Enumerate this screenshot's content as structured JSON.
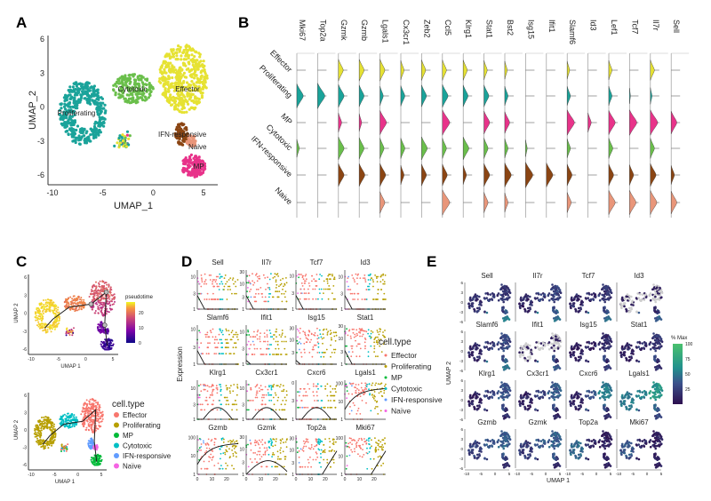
{
  "panels": {
    "a": "A",
    "b": "B",
    "c": "C",
    "d": "D",
    "e": "E"
  },
  "colors": {
    "clusters_a": {
      "Effector": "#e6e233",
      "Proliferating": "#1aa39a",
      "MP": "#e8338a",
      "Cytotoxic": "#6abf4b",
      "IFN-responsive": "#8b4513",
      "Naive": "#e9967a"
    },
    "clusters_cd": {
      "Effector": "#f8766d",
      "Proliferating": "#b79f00",
      "MP": "#00ba38",
      "Cytotoxic": "#00bfc4",
      "IFN-responsive": "#619cff",
      "Naive": "#f564e3"
    }
  },
  "chart_data": [
    {
      "id": "A",
      "type": "scatter",
      "xlabel": "UMAP_1",
      "ylabel": "UMAP_2",
      "xticks": [
        "-10",
        "-5",
        "0",
        "5"
      ],
      "yticks": [
        "-6",
        "-3",
        "0",
        "3",
        "6"
      ],
      "xlim": [
        -10,
        5
      ],
      "ylim": [
        -6,
        6
      ],
      "cluster_labels": [
        "Proliferating",
        "Cytotoxic",
        "Effector",
        "IFN-responsive",
        "Naive",
        "MP"
      ],
      "clusters": [
        {
          "name": "Proliferating",
          "center": [
            -7,
            -0.5
          ],
          "spread": [
            2.3,
            2.8
          ]
        },
        {
          "name": "Cytotoxic",
          "center": [
            -2,
            1.6
          ],
          "spread": [
            2.0,
            1.3
          ]
        },
        {
          "name": "Effector",
          "center": [
            3,
            2.5
          ],
          "spread": [
            2.4,
            3.0
          ]
        },
        {
          "name": "IFN-responsive",
          "center": [
            2.8,
            -2.4
          ],
          "spread": [
            0.6,
            1.0
          ]
        },
        {
          "name": "Naive",
          "center": [
            3.8,
            -3
          ],
          "spread": [
            0.5,
            0.5
          ]
        },
        {
          "name": "MP",
          "center": [
            4,
            -5.2
          ],
          "spread": [
            1.2,
            1.0
          ]
        }
      ]
    },
    {
      "id": "B",
      "type": "violin",
      "genes": [
        "Mki67",
        "Top2a",
        "Gzmk",
        "Gzmb",
        "Lgals1",
        "Cx3cr1",
        "Zeb2",
        "Ccl5",
        "Klrg1",
        "Stat1",
        "Bst2",
        "Isg15",
        "Ifit1",
        "Slamf6",
        "Id3",
        "Lef1",
        "Tcf7",
        "Il7r",
        "Sell"
      ],
      "rows": [
        "Effector",
        "Proliferating",
        "MP",
        "Cytotoxic",
        "IFN-responsive",
        "Naive"
      ],
      "relative_expression": [
        [
          0,
          0,
          0.6,
          0.6,
          0.6,
          0.4,
          0.5,
          0.5,
          0.5,
          0.4,
          0.3,
          0,
          0,
          0.3,
          0,
          0.4,
          0,
          0.5,
          0
        ],
        [
          0.8,
          0.9,
          0.7,
          0.6,
          0.4,
          0.5,
          0.6,
          0.7,
          0.6,
          0.6,
          0.4,
          0,
          0,
          0.4,
          0,
          0.4,
          0.1,
          0.2,
          0
        ],
        [
          0,
          0,
          0.4,
          0.3,
          0.8,
          0,
          0,
          0.9,
          0,
          0.7,
          0.6,
          0,
          0,
          0.9,
          0.4,
          0.8,
          0.9,
          0.9,
          0.7
        ],
        [
          0.3,
          0,
          0.7,
          0.6,
          0.5,
          0.5,
          0.7,
          0.5,
          0.7,
          0.5,
          0.4,
          0.2,
          0,
          0.4,
          0,
          0.5,
          0,
          0.5,
          0
        ],
        [
          0,
          0,
          0.7,
          0.7,
          0.7,
          0.4,
          0.6,
          0.6,
          0.4,
          0.7,
          0.8,
          0.9,
          0.8,
          0.6,
          0,
          0.6,
          0.5,
          0.7,
          0.4
        ],
        [
          0,
          0,
          0,
          0,
          0.6,
          0,
          0,
          0.9,
          0,
          0.5,
          0.4,
          0,
          0,
          0.5,
          0,
          0.8,
          0.8,
          0.8,
          0.7
        ]
      ]
    },
    {
      "id": "C-top",
      "type": "scatter",
      "xlabel": "UMAP 1",
      "ylabel": "UMAP 2",
      "xticks": [
        "-10",
        "-5",
        "0",
        "5"
      ],
      "yticks": [
        "-6",
        "-3",
        "0",
        "3",
        "6"
      ],
      "colorbar": {
        "title": "pseudotime",
        "ticks": [
          "0",
          "10",
          "20"
        ],
        "range": [
          0,
          27
        ]
      },
      "trajectory_nodes": [
        [
          4,
          -5.5
        ],
        [
          3.5,
          -2
        ],
        [
          3.8,
          3.5
        ],
        [
          1,
          1.5
        ],
        [
          -3,
          1
        ],
        [
          -6,
          -1
        ],
        [
          -7.5,
          -2.5
        ]
      ]
    },
    {
      "id": "C-bottom",
      "type": "scatter",
      "xlabel": "UMAP 1",
      "ylabel": "UMAP 2",
      "xticks": [
        "-10",
        "-5",
        "0",
        "5"
      ],
      "yticks": [
        "-6",
        "-3",
        "0",
        "3",
        "6"
      ],
      "legend": {
        "title": "cell.type",
        "entries": [
          "Effector",
          "Proliferating",
          "MP",
          "Cytotoxic",
          "IFN-responsive",
          "Naïve"
        ]
      }
    },
    {
      "id": "D",
      "type": "scatter",
      "ylabel": "Expression",
      "xticks": [
        "0",
        "10",
        "20"
      ],
      "xlim": [
        0,
        28
      ],
      "yscale": "log",
      "plots": [
        {
          "gene": "Sell",
          "yticks": [
            "1",
            "3",
            "10"
          ],
          "ymax": 16,
          "trend": "decreasing"
        },
        {
          "gene": "Il7r",
          "yticks": [
            "1",
            "3",
            "10",
            "30"
          ],
          "ymax": 35,
          "trend": "decreasing"
        },
        {
          "gene": "Tcf7",
          "yticks": [
            "1",
            "3",
            "10"
          ],
          "ymax": 15,
          "trend": "decreasing"
        },
        {
          "gene": "Id3",
          "yticks": [
            "1",
            "3",
            "10"
          ],
          "ymax": 16,
          "trend": "decreasing"
        },
        {
          "gene": "Slamf6",
          "yticks": [
            "1",
            "3",
            "10"
          ],
          "ymax": 13,
          "trend": "decreasing"
        },
        {
          "gene": "Ifit1",
          "yticks": [
            "1",
            "3",
            "10"
          ],
          "ymax": 16,
          "trend": "flat"
        },
        {
          "gene": "Isg15",
          "yticks": [
            "3",
            "10",
            "30"
          ],
          "ymax": 40,
          "trend": "flat"
        },
        {
          "gene": "Stat1",
          "yticks": [
            "1",
            "3",
            "10",
            "30"
          ],
          "ymax": 32,
          "trend": "decreasing"
        },
        {
          "gene": "Klrg1",
          "yticks": [
            "1",
            "3",
            "10"
          ],
          "ymax": 18,
          "trend": "peak"
        },
        {
          "gene": "Cx3cr1",
          "yticks": [
            "1",
            "3",
            "10"
          ],
          "ymax": 18,
          "trend": "peak"
        },
        {
          "gene": "Cxcr6",
          "yticks": [
            "1",
            "3",
            "0"
          ],
          "ymax": 10,
          "trend": "peak"
        },
        {
          "gene": "Lgals1",
          "yticks": [
            "1",
            "10",
            "100"
          ],
          "ymax": 150,
          "trend": "rising-plateau"
        },
        {
          "gene": "Gzmb",
          "yticks": [
            "1",
            "10",
            "100"
          ],
          "ymax": 130,
          "trend": "rising-plateau"
        },
        {
          "gene": "Gzmk",
          "yticks": [
            "1",
            "3",
            "10",
            "30"
          ],
          "ymax": 35,
          "trend": "broad-peak"
        },
        {
          "gene": "Top2a",
          "yticks": [
            "1",
            "3",
            "10",
            "30"
          ],
          "ymax": 40,
          "trend": "late-rise"
        },
        {
          "gene": "Mki67",
          "yticks": [
            "1",
            "10",
            "100"
          ],
          "ymax": 140,
          "trend": "late-rise"
        }
      ],
      "legend": {
        "title": "cell.type",
        "entries": [
          "Effector",
          "Proliferating",
          "MP",
          "Cytotoxic",
          "IFN-responsive",
          "Naïve"
        ]
      }
    },
    {
      "id": "E",
      "type": "scatter",
      "xlabel": "UMAP 1",
      "ylabel": "UMAP 2",
      "xticks": [
        "-10",
        "-5",
        "0",
        "5"
      ],
      "yticks": [
        "6",
        "3",
        "0",
        "-3",
        "-6"
      ],
      "colorbar": {
        "title": "% Max",
        "ticks": [
          "25",
          "50",
          "75",
          "100"
        ],
        "range": [
          0,
          100
        ]
      },
      "cluster_order": [
        "Proliferating",
        "Cytotoxic",
        "Effector",
        "IFN-responsive",
        "Naive",
        "MP"
      ],
      "plots": [
        {
          "gene": "Sell",
          "pct_max": [
            15,
            18,
            20,
            25,
            35,
            55
          ]
        },
        {
          "gene": "Il7r",
          "pct_max": [
            12,
            22,
            25,
            30,
            40,
            50
          ]
        },
        {
          "gene": "Tcf7",
          "pct_max": [
            12,
            15,
            18,
            25,
            35,
            45
          ]
        },
        {
          "gene": "Id3",
          "pct_max": [
            0,
            0,
            0,
            10,
            20,
            40
          ]
        },
        {
          "gene": "Slamf6",
          "pct_max": [
            10,
            20,
            28,
            30,
            40,
            50
          ]
        },
        {
          "gene": "Ifit1",
          "pct_max": [
            0,
            0,
            0,
            30,
            10,
            35
          ]
        },
        {
          "gene": "Isg15",
          "pct_max": [
            8,
            10,
            12,
            35,
            15,
            20
          ]
        },
        {
          "gene": "Stat1",
          "pct_max": [
            10,
            15,
            18,
            30,
            20,
            20
          ]
        },
        {
          "gene": "Klrg1",
          "pct_max": [
            10,
            25,
            35,
            30,
            15,
            12
          ]
        },
        {
          "gene": "Cx3cr1",
          "pct_max": [
            10,
            25,
            38,
            30,
            12,
            12
          ]
        },
        {
          "gene": "Cxcr6",
          "pct_max": [
            10,
            35,
            55,
            35,
            15,
            15
          ]
        },
        {
          "gene": "Lgals1",
          "pct_max": [
            55,
            60,
            70,
            45,
            30,
            25
          ]
        },
        {
          "gene": "Gzmb",
          "pct_max": [
            25,
            35,
            40,
            35,
            20,
            15
          ]
        },
        {
          "gene": "Gzmk",
          "pct_max": [
            22,
            35,
            40,
            35,
            20,
            15
          ]
        },
        {
          "gene": "Top2a",
          "pct_max": [
            45,
            15,
            8,
            10,
            8,
            8
          ]
        },
        {
          "gene": "Mki67",
          "pct_max": [
            35,
            12,
            8,
            8,
            8,
            8
          ]
        }
      ]
    }
  ]
}
